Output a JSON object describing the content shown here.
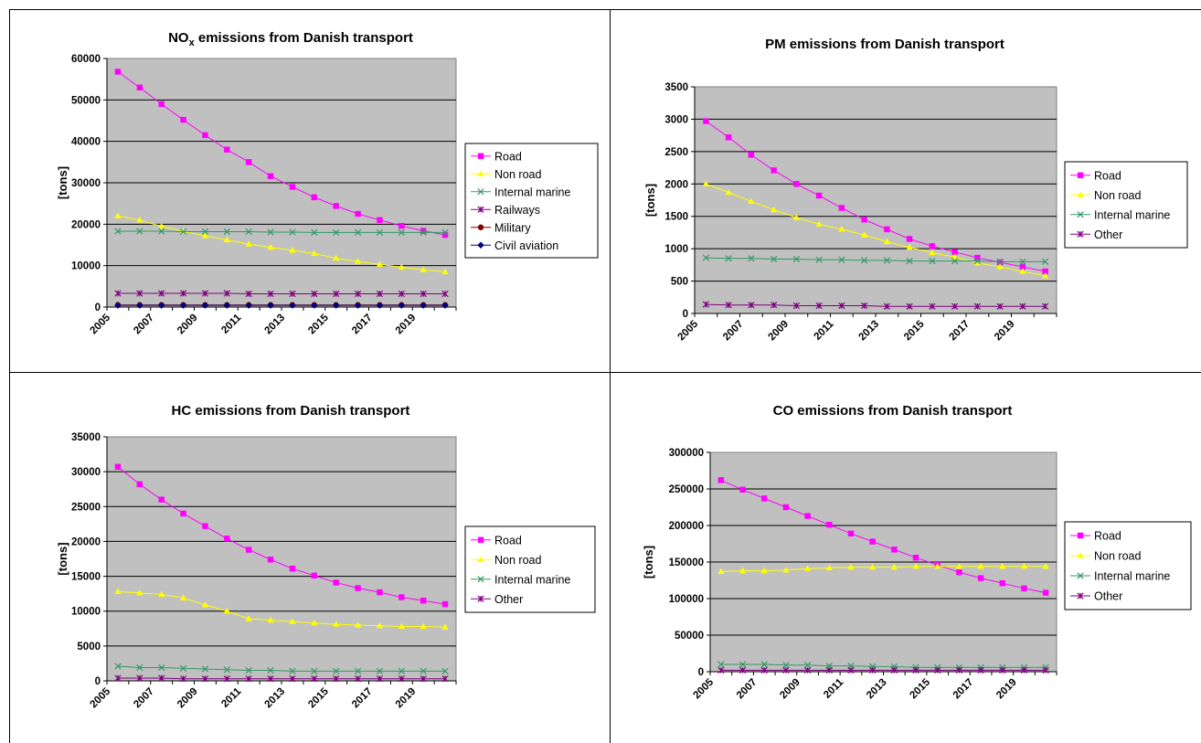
{
  "chart_data": [
    {
      "type": "line",
      "title": "NO",
      "title_sub": "x",
      "title_rest": " emissions from Danish transport",
      "ylabel": "[tons]",
      "ylim": [
        0,
        60000
      ],
      "yticks": [
        0,
        10000,
        20000,
        30000,
        40000,
        50000,
        60000
      ],
      "x": [
        2005,
        2006,
        2007,
        2008,
        2009,
        2010,
        2011,
        2012,
        2013,
        2014,
        2015,
        2016,
        2017,
        2018,
        2019,
        2020
      ],
      "xtick_labels": [
        "2005",
        "2007",
        "2009",
        "2011",
        "2013",
        "2015",
        "2017",
        "2019"
      ],
      "grid": true,
      "legend_position": "right",
      "series": [
        {
          "name": "Road",
          "color": "#FF00FF",
          "marker": "square",
          "values": [
            56800,
            53000,
            49000,
            45200,
            41500,
            38000,
            35000,
            31600,
            29000,
            26500,
            24400,
            22500,
            21000,
            19600,
            18400,
            17400
          ]
        },
        {
          "name": "Non road",
          "color": "#FFFF00",
          "marker": "triangle",
          "values": [
            22000,
            21000,
            19500,
            18300,
            17200,
            16200,
            15200,
            14400,
            13700,
            12900,
            11800,
            11000,
            10300,
            9600,
            9000,
            8500
          ]
        },
        {
          "name": "Internal marine",
          "color": "#339966",
          "marker": "x",
          "values": [
            18300,
            18300,
            18300,
            18200,
            18200,
            18200,
            18200,
            18100,
            18100,
            18000,
            18000,
            18000,
            18000,
            18000,
            18000,
            18000
          ]
        },
        {
          "name": "Railways",
          "color": "#800080",
          "marker": "star",
          "values": [
            3300,
            3300,
            3300,
            3300,
            3300,
            3300,
            3200,
            3200,
            3200,
            3200,
            3200,
            3200,
            3200,
            3200,
            3200,
            3200
          ]
        },
        {
          "name": "Military",
          "color": "#800000",
          "marker": "circle",
          "values": [
            500,
            500,
            500,
            500,
            500,
            500,
            500,
            500,
            500,
            500,
            500,
            500,
            500,
            500,
            500,
            500
          ]
        },
        {
          "name": "Civil aviation",
          "color": "#000080",
          "marker": "diamond",
          "values": [
            400,
            400,
            400,
            400,
            400,
            400,
            400,
            400,
            400,
            400,
            400,
            400,
            400,
            400,
            400,
            400
          ]
        }
      ]
    },
    {
      "type": "line",
      "title": "PM emissions from Danish transport",
      "ylabel": "[tons]",
      "ylim": [
        0,
        3500
      ],
      "yticks": [
        0,
        500,
        1000,
        1500,
        2000,
        2500,
        3000,
        3500
      ],
      "x": [
        2005,
        2006,
        2007,
        2008,
        2009,
        2010,
        2011,
        2012,
        2013,
        2014,
        2015,
        2016,
        2017,
        2018,
        2019,
        2020
      ],
      "xtick_labels": [
        "2005",
        "2007",
        "2009",
        "2011",
        "2013",
        "2015",
        "2017",
        "2019"
      ],
      "grid": true,
      "legend_position": "right",
      "series": [
        {
          "name": "Road",
          "color": "#FF00FF",
          "marker": "square",
          "values": [
            2970,
            2720,
            2450,
            2210,
            2000,
            1820,
            1630,
            1450,
            1300,
            1150,
            1040,
            950,
            860,
            790,
            720,
            650
          ]
        },
        {
          "name": "Non road",
          "color": "#FFFF00",
          "marker": "triangle",
          "values": [
            2000,
            1870,
            1730,
            1600,
            1480,
            1380,
            1300,
            1210,
            1110,
            1020,
            940,
            870,
            780,
            720,
            650,
            580
          ]
        },
        {
          "name": "Internal marine",
          "color": "#339966",
          "marker": "x",
          "values": [
            860,
            850,
            850,
            840,
            840,
            830,
            830,
            820,
            820,
            810,
            810,
            810,
            810,
            800,
            800,
            800
          ]
        },
        {
          "name": "Other",
          "color": "#800080",
          "marker": "star",
          "values": [
            140,
            130,
            130,
            130,
            120,
            120,
            120,
            120,
            110,
            110,
            110,
            110,
            110,
            110,
            110,
            110
          ]
        }
      ]
    },
    {
      "type": "line",
      "title": "HC emissions from Danish transport",
      "ylabel": "[tons]",
      "ylim": [
        0,
        35000
      ],
      "yticks": [
        0,
        5000,
        10000,
        15000,
        20000,
        25000,
        30000,
        35000
      ],
      "x": [
        2005,
        2006,
        2007,
        2008,
        2009,
        2010,
        2011,
        2012,
        2013,
        2014,
        2015,
        2016,
        2017,
        2018,
        2019,
        2020
      ],
      "xtick_labels": [
        "2005",
        "2007",
        "2009",
        "2011",
        "2013",
        "2015",
        "2017",
        "2019"
      ],
      "grid": true,
      "legend_position": "right",
      "series": [
        {
          "name": "Road",
          "color": "#FF00FF",
          "marker": "square",
          "values": [
            30700,
            28200,
            26000,
            24000,
            22200,
            20400,
            18800,
            17400,
            16100,
            15100,
            14100,
            13300,
            12700,
            12000,
            11500,
            11000
          ]
        },
        {
          "name": "Non road",
          "color": "#FFFF00",
          "marker": "triangle",
          "values": [
            12800,
            12600,
            12400,
            11900,
            10900,
            10000,
            8900,
            8700,
            8500,
            8300,
            8100,
            8000,
            7900,
            7800,
            7800,
            7700
          ]
        },
        {
          "name": "Internal marine",
          "color": "#339966",
          "marker": "x",
          "values": [
            2100,
            1900,
            1900,
            1800,
            1700,
            1600,
            1500,
            1500,
            1400,
            1400,
            1400,
            1400,
            1400,
            1400,
            1400,
            1400
          ]
        },
        {
          "name": "Other",
          "color": "#800080",
          "marker": "star",
          "values": [
            400,
            400,
            400,
            300,
            300,
            300,
            300,
            300,
            300,
            300,
            300,
            300,
            300,
            300,
            300,
            300
          ]
        }
      ]
    },
    {
      "type": "line",
      "title": "CO emissions from Danish transport",
      "ylabel": "[tons]",
      "ylim": [
        0,
        300000
      ],
      "yticks": [
        0,
        50000,
        100000,
        150000,
        200000,
        250000,
        300000
      ],
      "x": [
        2005,
        2006,
        2007,
        2008,
        2009,
        2010,
        2011,
        2012,
        2013,
        2014,
        2015,
        2016,
        2017,
        2018,
        2019,
        2020
      ],
      "xtick_labels": [
        "2005",
        "2007",
        "2009",
        "2011",
        "2013",
        "2015",
        "2017",
        "2019"
      ],
      "grid": true,
      "legend_position": "right",
      "series": [
        {
          "name": "Road",
          "color": "#FF00FF",
          "marker": "square",
          "values": [
            262000,
            249000,
            237000,
            225000,
            213000,
            201000,
            189000,
            178000,
            167000,
            156000,
            146000,
            136000,
            128000,
            121000,
            114000,
            108000
          ]
        },
        {
          "name": "Non road",
          "color": "#FFFF00",
          "marker": "triangle",
          "values": [
            137000,
            138000,
            138000,
            139000,
            141000,
            142000,
            143000,
            143000,
            143000,
            144000,
            144000,
            144000,
            144000,
            144000,
            144000,
            144000
          ]
        },
        {
          "name": "Internal marine",
          "color": "#339966",
          "marker": "x",
          "values": [
            10000,
            10000,
            10000,
            9000,
            9000,
            8000,
            8000,
            7000,
            7000,
            6000,
            6000,
            6000,
            6000,
            6000,
            6000,
            6000
          ]
        },
        {
          "name": "Other",
          "color": "#800080",
          "marker": "star",
          "values": [
            2000,
            2000,
            2000,
            2000,
            2000,
            2000,
            2000,
            2000,
            2000,
            2000,
            2000,
            2000,
            2000,
            2000,
            2000,
            2000
          ]
        }
      ]
    }
  ]
}
